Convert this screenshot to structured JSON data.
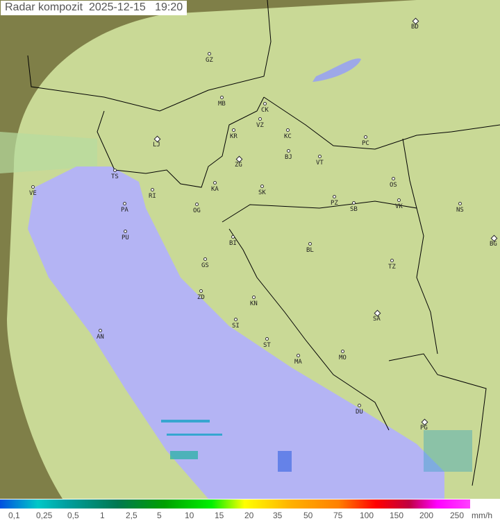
{
  "title": "Radar kompozit  2025-12-15   19:20",
  "colors": {
    "land": "#c8dc98",
    "sea": "#b4b4f4",
    "outside_coverage": "#8a8a50",
    "border": "#000000"
  },
  "cities": [
    "BD",
    "GZ",
    "MB",
    "CK",
    "VZ",
    "KR",
    "KC",
    "PC",
    "LJ",
    "ZG",
    "BJ",
    "VT",
    "TS",
    "KA",
    "SK",
    "OS",
    "VE",
    "RI",
    "PA",
    "OG",
    "PZ",
    "SB",
    "VK",
    "NS",
    "PU",
    "BI",
    "BL",
    "BG",
    "GS",
    "TZ",
    "ZD",
    "KN",
    "SA",
    "SI",
    "AN",
    "ST",
    "MO",
    "MA",
    "DU",
    "PG"
  ],
  "legend": {
    "ticks": [
      "0,1",
      "0,25",
      "0,5",
      "1",
      "2,5",
      "5",
      "10",
      "15",
      "20",
      "35",
      "50",
      "75",
      "100",
      "150",
      "200",
      "250"
    ],
    "unit": "mm/h"
  }
}
